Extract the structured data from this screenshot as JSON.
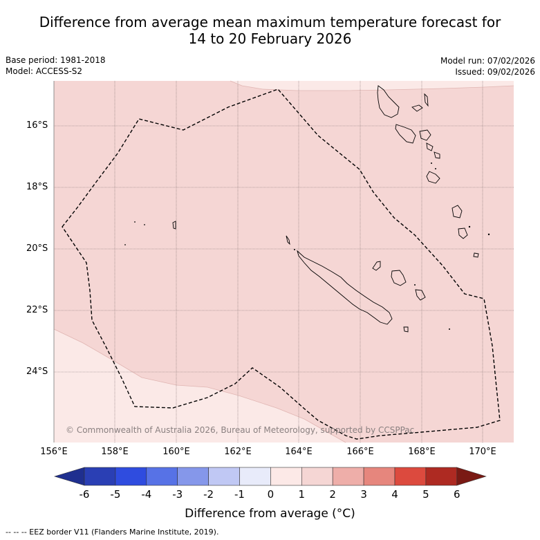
{
  "title": {
    "line1": "Difference from average mean maximum temperature forecast for",
    "line2": "14 to 20 February 2026"
  },
  "meta": {
    "base_period": "Base period: 1981-2018",
    "model": "Model: ACCESS-S2",
    "model_run": "Model run: 07/02/2026",
    "issued": "Issued: 09/02/2026"
  },
  "map": {
    "lat_labels": [
      "16°S",
      "18°S",
      "20°S",
      "22°S",
      "24°S"
    ],
    "lon_labels": [
      "156°E",
      "158°E",
      "160°E",
      "162°E",
      "164°E",
      "166°E",
      "168°E",
      "170°E"
    ],
    "copyright": "© Commonwealth of Australia 2026, Bureau of Meteorology, supported by CCSPPac",
    "fill_main": "#f5d6d4",
    "fill_light": "#fbe9e7"
  },
  "colorbar": {
    "ticks": [
      "-6",
      "-5",
      "-4",
      "-3",
      "-2",
      "-1",
      "0",
      "1",
      "2",
      "3",
      "4",
      "5",
      "6"
    ],
    "colors": [
      "#1f2f8f",
      "#2a3fb4",
      "#2f4cdf",
      "#5772e6",
      "#8597ea",
      "#c0c8f4",
      "#e8ebfa",
      "#fce9e7",
      "#f5d6d4",
      "#eeaea9",
      "#e6867d",
      "#dc4a3e",
      "#ae2a22",
      "#7a1a14"
    ],
    "title": "Difference from average (°C)"
  },
  "footer": "--  --  -- EEZ border V11 (Flanders Marine Institute, 2019)."
}
